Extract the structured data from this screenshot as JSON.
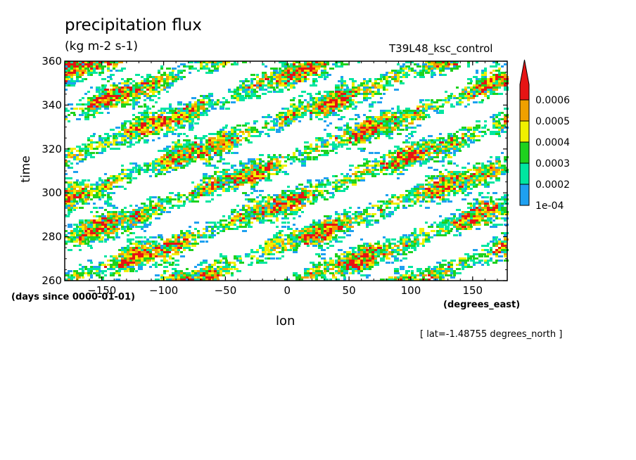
{
  "chart_data": {
    "type": "heatmap",
    "title": "precipitation flux",
    "units": "(kg m-2 s-1)",
    "experiment": "T39L48_ksc_control",
    "xlabel": "lon",
    "ylabel": "time",
    "x_units": "(degrees_east)",
    "y_units": "(days since 0000-01-01)",
    "annotation": "[ lat=-1.48755 degrees_north ]",
    "xlim": [
      -180,
      178
    ],
    "ylim": [
      260,
      360
    ],
    "x_ticks": [
      -150,
      -100,
      -50,
      0,
      50,
      100,
      150
    ],
    "x_tick_labels": [
      "−150",
      "−100",
      "−50",
      "0",
      "50",
      "100",
      "150"
    ],
    "y_ticks": [
      260,
      280,
      300,
      320,
      340,
      360
    ],
    "y_tick_labels": [
      "260",
      "280",
      "300",
      "320",
      "340",
      "360"
    ],
    "colorbar": {
      "levels": [
        0.0001,
        0.0002,
        0.0003,
        0.0004,
        0.0005,
        0.0006
      ],
      "labels": [
        "1e-04",
        "0.0002",
        "0.0003",
        "0.0004",
        "0.0005",
        "0.0006"
      ],
      "colors": [
        "#1ea0f0",
        "#00e6a0",
        "#1ed21e",
        "#f0f000",
        "#f0a000",
        "#e61414"
      ],
      "extend": "max"
    },
    "pattern": "eastward-propagating precipitation bands (white = below 1e-04)"
  }
}
